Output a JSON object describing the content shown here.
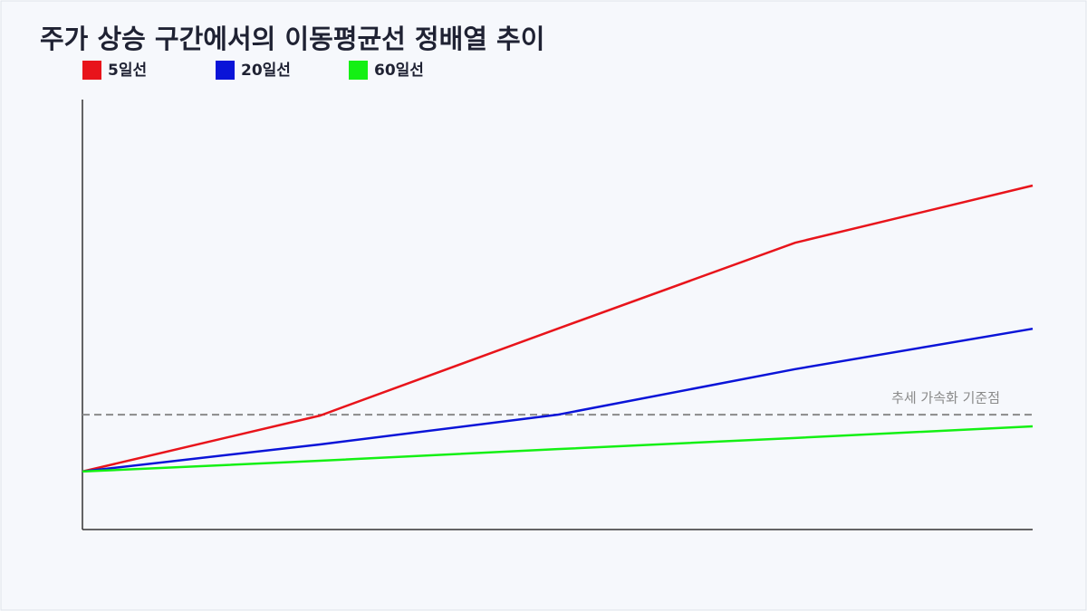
{
  "chart_data": {
    "type": "line",
    "title": "주가 상승 구간에서의 이동평균선 정배열 추이",
    "categories": [
      null,
      null,
      null,
      null,
      null
    ],
    "series": [
      {
        "name": "5일선",
        "color": "#e8141b",
        "values": [
          13.5,
          26.5,
          46.7,
          66.7,
          80
        ]
      },
      {
        "name": "20일선",
        "color": "#0a14d8",
        "values": [
          13.5,
          19.8,
          26.7,
          37.3,
          46.7
        ]
      },
      {
        "name": "60일선",
        "color": "#14f014",
        "values": [
          13.5,
          16,
          18.7,
          21.3,
          24
        ]
      }
    ],
    "reference_line": {
      "value": 26.7,
      "label": "추세 가속화 기준점",
      "color": "#8a8a8a"
    },
    "ylim": [
      0,
      100
    ],
    "legend": "top-left",
    "grid": false
  }
}
